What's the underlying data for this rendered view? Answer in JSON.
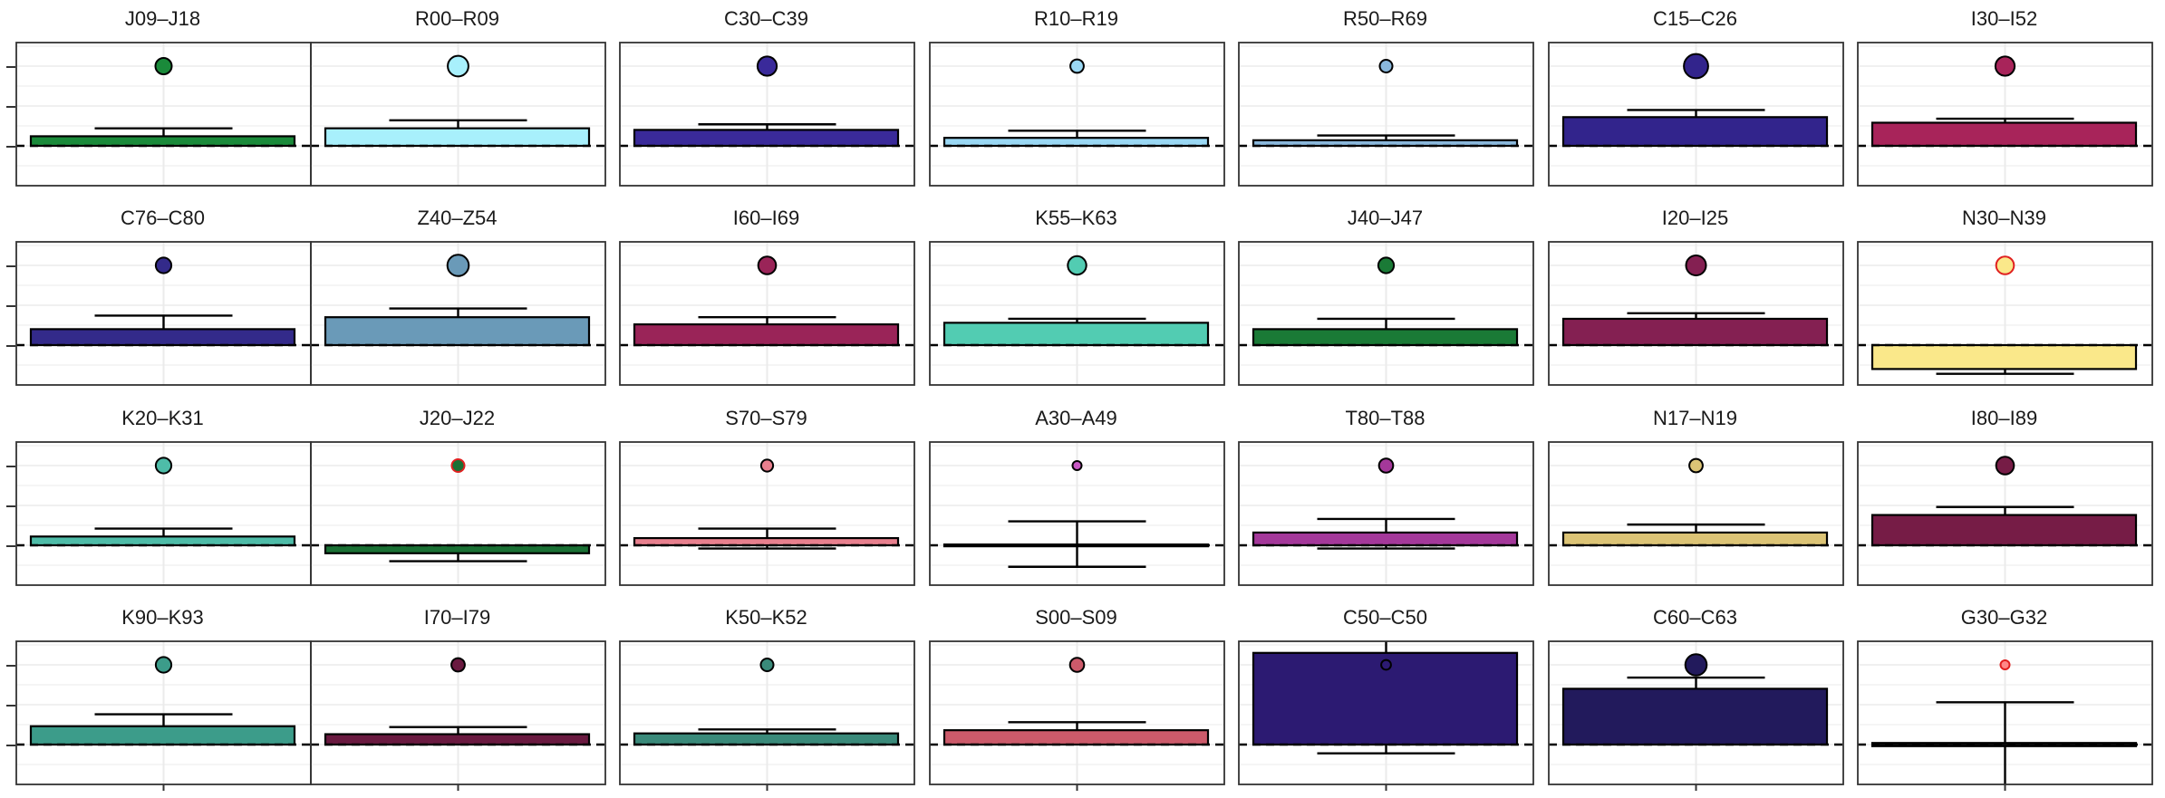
{
  "chart_data": [
    {
      "type": "box",
      "title": "J09–J18",
      "color": "#1a8a3a",
      "box": [
        0,
        0.12
      ],
      "whisker": [
        0,
        0.22
      ],
      "point": 1.0,
      "point_size": 1.0
    },
    {
      "type": "box",
      "title": "R00–R09",
      "color": "#a8f0fc",
      "box": [
        0,
        0.22
      ],
      "whisker": [
        0,
        0.32
      ],
      "point": 1.0,
      "point_size": 1.3
    },
    {
      "type": "box",
      "title": "C30–C39",
      "color": "#3a2a9a",
      "box": [
        0,
        0.2
      ],
      "whisker": [
        0,
        0.27
      ],
      "point": 1.0,
      "point_size": 1.2
    },
    {
      "type": "box",
      "title": "R10–R19",
      "color": "#9ad8f4",
      "box": [
        0,
        0.1
      ],
      "whisker": [
        0,
        0.19
      ],
      "point": 1.0,
      "point_size": 0.8
    },
    {
      "type": "box",
      "title": "R50–R69",
      "color": "#8ab8dc",
      "box": [
        0,
        0.07
      ],
      "whisker": [
        0,
        0.13
      ],
      "point": 1.0,
      "point_size": 0.75
    },
    {
      "type": "box",
      "title": "C15–C26",
      "color": "#32248c",
      "box": [
        0,
        0.36
      ],
      "whisker": [
        0,
        0.45
      ],
      "point": 1.0,
      "point_size": 1.55
    },
    {
      "type": "box",
      "title": "I30–I52",
      "color": "#a8245a",
      "box": [
        0,
        0.29
      ],
      "whisker": [
        0,
        0.34
      ],
      "point": 1.0,
      "point_size": 1.2
    },
    {
      "type": "box",
      "title": "C76–C80",
      "color": "#332a8a",
      "box": [
        0,
        0.2
      ],
      "whisker": [
        0,
        0.37
      ],
      "point": 1.0,
      "point_size": 0.95
    },
    {
      "type": "box",
      "title": "Z40–Z54",
      "color": "#6a9ab8",
      "box": [
        0,
        0.35
      ],
      "whisker": [
        0,
        0.46
      ],
      "point": 1.0,
      "point_size": 1.35
    },
    {
      "type": "box",
      "title": "I60–I69",
      "color": "#9a2458",
      "box": [
        0,
        0.26
      ],
      "whisker": [
        0,
        0.35
      ],
      "point": 1.0,
      "point_size": 1.1
    },
    {
      "type": "box",
      "title": "K55–K63",
      "color": "#52ccb2",
      "box": [
        0,
        0.28
      ],
      "whisker": [
        0,
        0.33
      ],
      "point": 1.0,
      "point_size": 1.15
    },
    {
      "type": "box",
      "title": "J40–J47",
      "color": "#1a7a36",
      "box": [
        0,
        0.2
      ],
      "whisker": [
        0,
        0.33
      ],
      "point": 1.0,
      "point_size": 0.95
    },
    {
      "type": "box",
      "title": "I20–I25",
      "color": "#842052",
      "box": [
        0,
        0.33
      ],
      "whisker": [
        0,
        0.4
      ],
      "point": 1.0,
      "point_size": 1.25
    },
    {
      "type": "box",
      "title": "N30–N39",
      "color": "#fae88a",
      "box": [
        -0.3,
        0
      ],
      "whisker": [
        -0.36,
        0
      ],
      "point": 1.0,
      "point_size": 1.1,
      "outline": "#e02020"
    },
    {
      "type": "box",
      "title": "K20–K31",
      "color": "#4ebca8",
      "box": [
        0,
        0.11
      ],
      "whisker": [
        0,
        0.21
      ],
      "point": 1.0,
      "point_size": 0.95
    },
    {
      "type": "box",
      "title": "J20–J22",
      "color": "#1a7034",
      "box": [
        -0.1,
        0
      ],
      "whisker": [
        -0.2,
        0
      ],
      "point": 1.0,
      "point_size": 0.75,
      "outline": "#e02020"
    },
    {
      "type": "box",
      "title": "S70–S79",
      "color": "#e8808e",
      "box": [
        0,
        0.09
      ],
      "whisker": [
        -0.04,
        0.21
      ],
      "point": 1.0,
      "point_size": 0.7
    },
    {
      "type": "box",
      "title": "A30–A49",
      "color": "#c858c4",
      "box": [
        -0.01,
        0.01
      ],
      "whisker": [
        -0.27,
        0.3
      ],
      "point": 1.0,
      "point_size": 0.5
    },
    {
      "type": "box",
      "title": "T80–T88",
      "color": "#a4389a",
      "box": [
        0,
        0.16
      ],
      "whisker": [
        -0.04,
        0.33
      ],
      "point": 1.0,
      "point_size": 0.85
    },
    {
      "type": "box",
      "title": "N17–N19",
      "color": "#dcc476",
      "box": [
        0,
        0.16
      ],
      "whisker": [
        0,
        0.26
      ],
      "point": 1.0,
      "point_size": 0.8
    },
    {
      "type": "box",
      "title": "I80–I89",
      "color": "#761c46",
      "box": [
        0,
        0.38
      ],
      "whisker": [
        0,
        0.48
      ],
      "point": 1.0,
      "point_size": 1.1
    },
    {
      "type": "box",
      "title": "K90–K93",
      "color": "#3c9c8a",
      "box": [
        0,
        0.23
      ],
      "whisker": [
        0,
        0.38
      ],
      "point": 1.0,
      "point_size": 0.95
    },
    {
      "type": "box",
      "title": "I70–I79",
      "color": "#6a1a40",
      "box": [
        0,
        0.13
      ],
      "whisker": [
        0,
        0.22
      ],
      "point": 1.0,
      "point_size": 0.8
    },
    {
      "type": "box",
      "title": "K50–K52",
      "color": "#3a8a7a",
      "box": [
        0,
        0.14
      ],
      "whisker": [
        0,
        0.19
      ],
      "point": 1.0,
      "point_size": 0.75
    },
    {
      "type": "box",
      "title": "S00–S09",
      "color": "#cc5a6a",
      "box": [
        0,
        0.18
      ],
      "whisker": [
        0,
        0.28
      ],
      "point": 1.0,
      "point_size": 0.85
    },
    {
      "type": "box",
      "title": "C50–C50",
      "color": "#2c1a72",
      "box": [
        0,
        1.15
      ],
      "whisker": [
        -0.11,
        1.35
      ],
      "point": 1.0,
      "point_size": 0.55
    },
    {
      "type": "box",
      "title": "C60–C63",
      "color": "#221a5c",
      "box": [
        0,
        0.7
      ],
      "whisker": [
        0,
        0.84
      ],
      "point": 1.0,
      "point_size": 1.35
    },
    {
      "type": "box",
      "title": "G30–G32",
      "color": "#0e0e0e",
      "box": [
        -0.02,
        0.02
      ],
      "whisker": [
        -0.6,
        0.53
      ],
      "point": 1.0,
      "point_size": 0.5,
      "outline": "#e02020",
      "point_fill": "#ff8888"
    }
  ],
  "ylim": [
    -0.5,
    1.35
  ],
  "reference_line": 0,
  "y_ticks": [
    0,
    0.5,
    1.0
  ]
}
